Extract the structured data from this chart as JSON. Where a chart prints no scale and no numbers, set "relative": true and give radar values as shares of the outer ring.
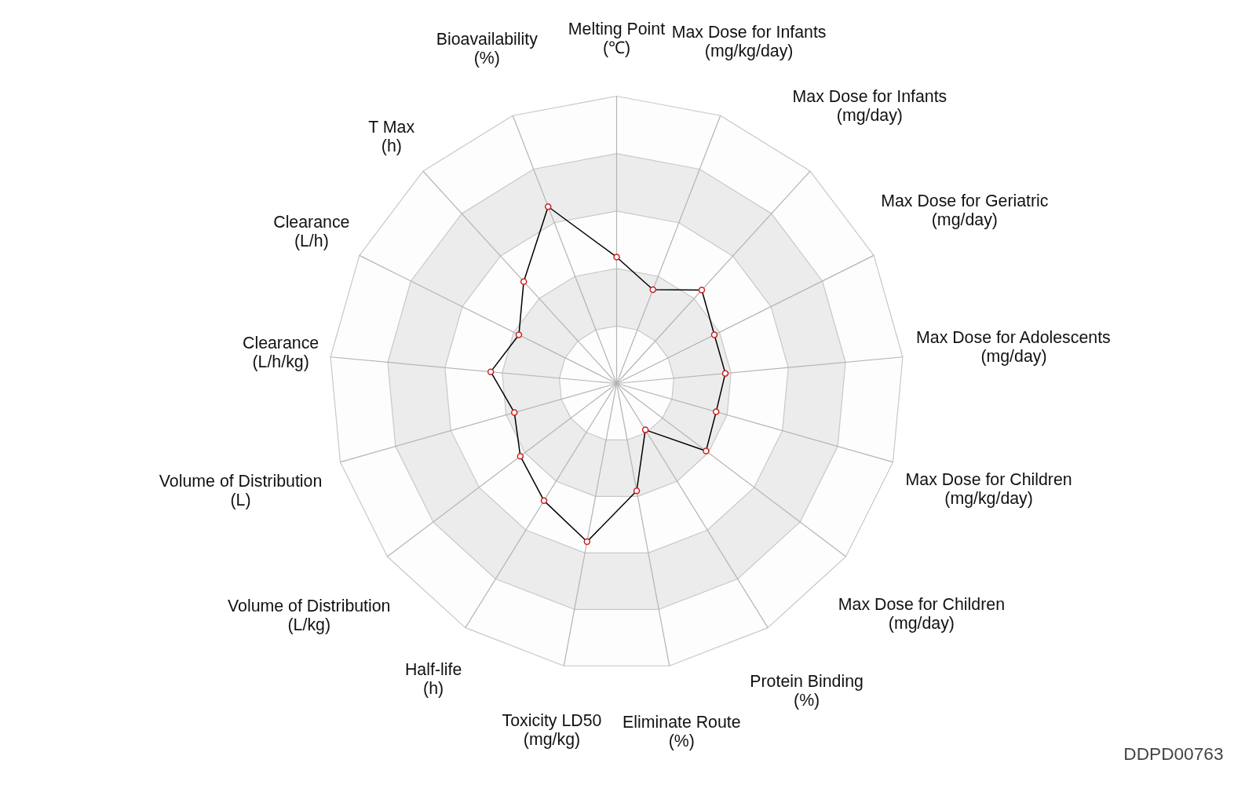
{
  "chart_data": {
    "type": "radar",
    "relative": true,
    "grid": true,
    "marker": "circle",
    "categories": [
      "Melting Point\n(℃)",
      "Max Dose for Infants\n(mg/kg/day)",
      "Max Dose for Infants\n(mg/day)",
      "Max Dose for Geriatric\n(mg/day)",
      "Max Dose for Adolescents\n(mg/day)",
      "Max Dose for Children\n(mg/kg/day)",
      "Max Dose for Children\n(mg/day)",
      "Protein Binding\n(%)",
      "Eliminate Route\n(%)",
      "Toxicity LD50\n(mg/kg)",
      "Half-life\n(h)",
      "Volume of Distribution\n(L/kg)",
      "Volume of Distribution\n(L)",
      "Clearance\n(L/h/kg)",
      "Clearance\n(L/h)",
      "T Max\n(h)",
      "Bioavailability\n(%)"
    ],
    "series": [
      {
        "color": "#000000",
        "values": [
          0.44,
          0.35,
          0.44,
          0.38,
          0.38,
          0.36,
          0.39,
          0.19,
          0.38,
          0.56,
          0.48,
          0.42,
          0.37,
          0.44,
          0.38,
          0.48,
          0.66
        ]
      }
    ],
    "annotations": [
      "DDPD00763"
    ]
  }
}
